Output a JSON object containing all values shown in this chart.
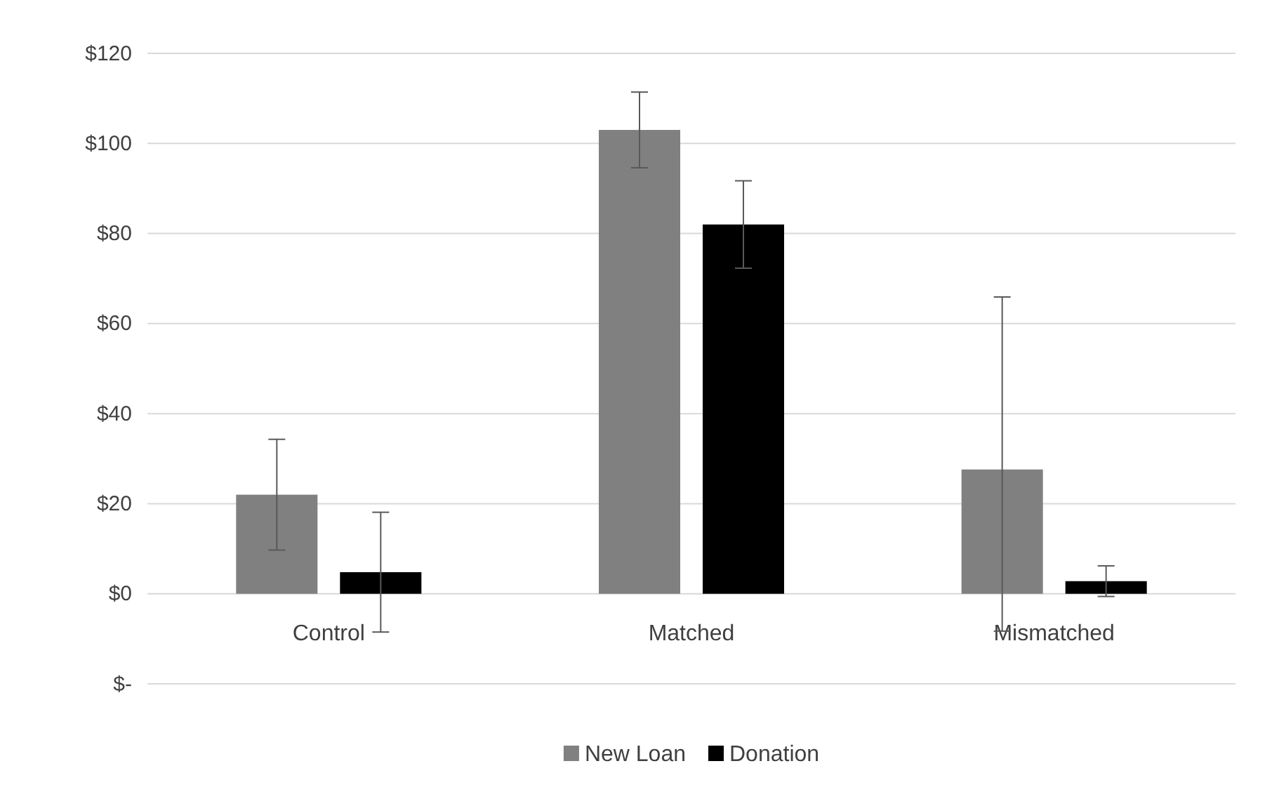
{
  "chart_data": {
    "type": "bar",
    "categories": [
      "Control",
      "Matched",
      "Mismatched"
    ],
    "series": [
      {
        "name": "New Loan",
        "color": "#808080",
        "values": [
          22,
          103,
          27.6
        ],
        "errors": [
          12.3,
          8.4,
          [
            -8.3,
            65.9
          ]
        ]
      },
      {
        "name": "Donation",
        "color": "#000000",
        "values": [
          4.8,
          82,
          2.8
        ],
        "errors": [
          13.3,
          9.7,
          3.4
        ]
      }
    ],
    "ylim": [
      -20,
      120
    ],
    "yticks": [
      {
        "value": -20,
        "label": "$-"
      },
      {
        "value": 0,
        "label": "$0"
      },
      {
        "value": 20,
        "label": "$20"
      },
      {
        "value": 40,
        "label": "$40"
      },
      {
        "value": 60,
        "label": "$60"
      },
      {
        "value": 80,
        "label": "$80"
      },
      {
        "value": 100,
        "label": "$100"
      },
      {
        "value": 120,
        "label": "$120"
      }
    ],
    "grid": "y",
    "legend": "bottom"
  }
}
